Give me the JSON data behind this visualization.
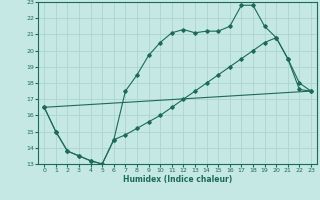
{
  "xlabel": "Humidex (Indice chaleur)",
  "bg_color": "#c5e8e5",
  "line_color": "#1a6b5a",
  "grid_color": "#a8d0cc",
  "xlim": [
    -0.5,
    23.5
  ],
  "ylim": [
    13,
    23
  ],
  "xticks": [
    0,
    1,
    2,
    3,
    4,
    5,
    6,
    7,
    8,
    9,
    10,
    11,
    12,
    13,
    14,
    15,
    16,
    17,
    18,
    19,
    20,
    21,
    22,
    23
  ],
  "yticks": [
    13,
    14,
    15,
    16,
    17,
    18,
    19,
    20,
    21,
    22,
    23
  ],
  "line1_x": [
    0,
    1,
    2,
    3,
    4,
    5,
    6,
    7,
    8,
    9,
    10,
    11,
    12,
    13,
    14,
    15,
    16,
    17,
    18,
    19,
    20,
    21,
    22,
    23
  ],
  "line1_y": [
    16.5,
    15.0,
    13.8,
    13.5,
    13.2,
    13.0,
    14.5,
    17.5,
    18.5,
    19.7,
    20.5,
    21.1,
    21.3,
    21.1,
    21.2,
    21.2,
    21.5,
    22.8,
    22.8,
    21.5,
    20.8,
    19.5,
    18.0,
    17.5
  ],
  "line2_x": [
    0,
    1,
    2,
    3,
    4,
    5,
    6,
    7,
    8,
    9,
    10,
    11,
    12,
    13,
    14,
    15,
    16,
    17,
    18,
    19,
    20,
    21,
    22,
    23
  ],
  "line2_y": [
    16.5,
    15.0,
    13.8,
    13.5,
    13.2,
    13.0,
    14.5,
    14.8,
    15.2,
    15.6,
    16.0,
    16.5,
    17.0,
    17.5,
    18.0,
    18.5,
    19.0,
    19.5,
    20.0,
    20.5,
    20.8,
    19.5,
    17.6,
    17.5
  ],
  "line3_x": [
    0,
    23
  ],
  "line3_y": [
    16.5,
    17.5
  ]
}
